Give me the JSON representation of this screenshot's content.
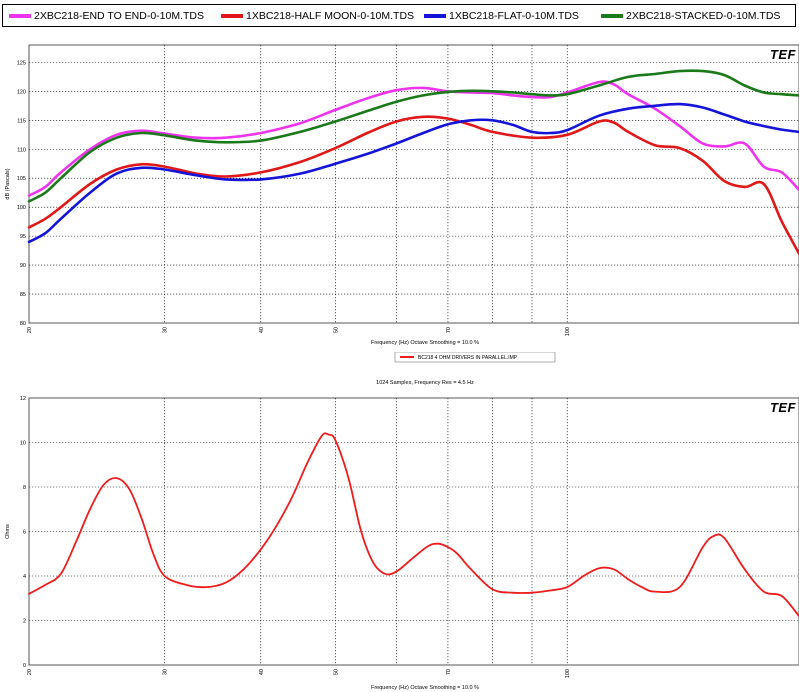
{
  "legend": {
    "items": [
      {
        "label": "2XBC218-END TO END-0-10M.TDS",
        "color": "#ee33ee"
      },
      {
        "label": "1XBC218-HALF MOON-0-10M.TDS",
        "color": "#e01818"
      },
      {
        "label": "1XBC218-FLAT-0-10M.TDS",
        "color": "#1414d8"
      },
      {
        "label": "2XBC218-STACKED-0-10M.TDS",
        "color": "#1a7a1a"
      }
    ]
  },
  "chart_data": [
    {
      "type": "line",
      "xscale": "log",
      "ylabel": "dB (Pascals)",
      "xlabel": "Frequency (Hz) Octave Smoothing = 10.0 %",
      "logo": "TEF",
      "xlim": [
        20,
        200
      ],
      "ylim": [
        80,
        128
      ],
      "yticks": [
        80,
        85,
        90,
        95,
        100,
        105,
        110,
        115,
        120,
        125
      ],
      "xticks": [
        20,
        30,
        40,
        50,
        70,
        100
      ],
      "grid": true,
      "series": [
        {
          "name": "2XBC218-END TO END-0-10M.TDS",
          "color": "#ee33ee",
          "x": [
            20,
            21,
            22,
            24,
            26,
            28,
            30,
            33,
            36,
            40,
            45,
            50,
            55,
            60,
            65,
            70,
            75,
            80,
            85,
            90,
            95,
            100,
            110,
            115,
            120,
            130,
            140,
            150,
            160,
            170,
            180,
            190,
            200
          ],
          "y": [
            102,
            103.5,
            106,
            110,
            112.5,
            113.2,
            112.7,
            112,
            112,
            112.8,
            114.5,
            116.8,
            118.8,
            120.2,
            120.6,
            120,
            119.8,
            119.7,
            119.3,
            119,
            119,
            119.8,
            121.6,
            121.2,
            119.5,
            117,
            114,
            111,
            110.5,
            111,
            107,
            106,
            103
          ]
        },
        {
          "name": "1XBC218-HALF MOON-0-10M.TDS",
          "color": "#e01818",
          "x": [
            20,
            21,
            22,
            24,
            26,
            28,
            30,
            33,
            36,
            40,
            45,
            50,
            55,
            60,
            65,
            70,
            75,
            80,
            90,
            100,
            110,
            115,
            120,
            130,
            140,
            150,
            160,
            170,
            180,
            190,
            200
          ],
          "y": [
            96.5,
            98,
            100,
            104,
            106.5,
            107.4,
            107,
            105.8,
            105.3,
            106,
            107.8,
            110.2,
            112.8,
            114.8,
            115.6,
            115.3,
            114.2,
            113,
            112,
            112.5,
            114.8,
            114.6,
            113,
            110.7,
            110.2,
            108,
            104.5,
            103.5,
            104,
            97.5,
            92
          ]
        },
        {
          "name": "1XBC218-FLAT-0-10M.TDS",
          "color": "#1414d8",
          "x": [
            20,
            21,
            22,
            24,
            26,
            28,
            30,
            33,
            36,
            40,
            45,
            50,
            55,
            60,
            65,
            70,
            75,
            80,
            85,
            90,
            95,
            100,
            110,
            120,
            130,
            140,
            150,
            160,
            170,
            180,
            190,
            200
          ],
          "y": [
            94,
            95.5,
            98,
            102.5,
            105.8,
            106.8,
            106.5,
            105.5,
            104.8,
            104.8,
            105.8,
            107.5,
            109.2,
            111,
            112.8,
            114.3,
            115,
            115,
            114.2,
            113,
            112.8,
            113.3,
            115.8,
            117,
            117.5,
            117.8,
            117.2,
            116,
            114.8,
            114,
            113.4,
            113
          ]
        },
        {
          "name": "2XBC218-STACKED-0-10M.TDS",
          "color": "#1a7a1a",
          "x": [
            20,
            21,
            22,
            24,
            26,
            28,
            30,
            33,
            36,
            40,
            45,
            50,
            55,
            60,
            65,
            70,
            75,
            80,
            85,
            90,
            95,
            100,
            110,
            120,
            130,
            140,
            150,
            160,
            170,
            180,
            190,
            200
          ],
          "y": [
            101,
            102.5,
            105,
            109.5,
            112,
            112.8,
            112.4,
            111.5,
            111.2,
            111.5,
            113,
            114.8,
            116.6,
            118.2,
            119.3,
            119.9,
            120.1,
            120,
            119.8,
            119.5,
            119.3,
            119.5,
            121,
            122.5,
            123,
            123.5,
            123.5,
            122.8,
            121,
            119.8,
            119.5,
            119.3
          ]
        }
      ]
    },
    {
      "type": "line",
      "xscale": "log",
      "title": "1024 Samples, Frequency Res = 4.5 Hz",
      "ylabel": "Ohms",
      "xlabel": "Frequency (Hz) Octave Smoothing = 10.0 %",
      "logo": "TEF",
      "legend_label": "BC218 4 OHM DRIVERS IN PARALLEL.IMP",
      "xlim": [
        20,
        200
      ],
      "ylim": [
        0,
        12
      ],
      "yticks": [
        0,
        2,
        4,
        6,
        8,
        10,
        12
      ],
      "xticks": [
        20,
        30,
        40,
        50,
        70,
        100
      ],
      "grid": true,
      "series": [
        {
          "name": "BC218 4 OHM DRIVERS IN PARALLEL.IMP",
          "color": "#ee1c1c",
          "x": [
            20,
            21,
            22,
            23,
            24,
            25,
            26,
            27,
            28,
            29,
            30,
            32,
            34,
            36,
            38,
            40,
            42,
            44,
            46,
            48,
            49,
            50,
            52,
            54,
            56,
            58,
            60,
            63,
            66,
            68,
            70,
            72,
            75,
            80,
            85,
            90,
            95,
            100,
            105,
            110,
            115,
            120,
            125,
            130,
            140,
            150,
            155,
            160,
            170,
            180,
            190,
            200
          ],
          "y": [
            3.2,
            3.6,
            4.1,
            5.5,
            7,
            8.1,
            8.4,
            7.9,
            6.6,
            5,
            4,
            3.6,
            3.5,
            3.7,
            4.3,
            5.2,
            6.3,
            7.6,
            9.1,
            10.3,
            10.35,
            10.1,
            8.4,
            6,
            4.6,
            4.1,
            4.2,
            4.8,
            5.35,
            5.45,
            5.3,
            5,
            4.3,
            3.4,
            3.25,
            3.25,
            3.35,
            3.5,
            4,
            4.35,
            4.3,
            3.85,
            3.5,
            3.3,
            3.5,
            5.3,
            5.8,
            5.7,
            4.3,
            3.3,
            3.1,
            2.2
          ]
        }
      ]
    }
  ]
}
